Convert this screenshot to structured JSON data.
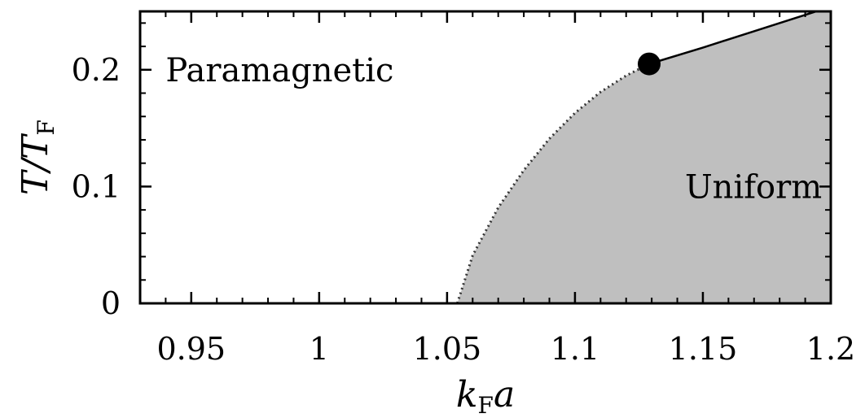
{
  "chart_data": {
    "type": "area",
    "xlabel": {
      "main": "k",
      "sub": "F",
      "tail": "a"
    },
    "ylabel": {
      "main": "T/T",
      "sub": "F"
    },
    "xlim": [
      0.93,
      1.2
    ],
    "ylim": [
      0,
      0.25
    ],
    "x_ticks": [
      0.95,
      1,
      1.05,
      1.1,
      1.15,
      1.2
    ],
    "x_tick_labels": [
      "0.95",
      "1",
      "1.05",
      "1.1",
      "1.15",
      "1.2"
    ],
    "y_ticks": [
      0,
      0.1,
      0.2
    ],
    "y_tick_labels": [
      "0",
      "0.1",
      "0.2"
    ],
    "grid": false,
    "regions": [
      {
        "label": "Paramagnetic",
        "x": 0.94,
        "y": 0.2
      },
      {
        "label": "Uniform",
        "x": 1.143,
        "y": 0.1
      }
    ],
    "fill_color": "#bfbfbf",
    "boundary_second_order": {
      "style": "dotted",
      "x": [
        1.054,
        1.06,
        1.07,
        1.08,
        1.09,
        1.1,
        1.11,
        1.12,
        1.129
      ],
      "y": [
        0.0,
        0.041,
        0.082,
        0.114,
        0.141,
        0.163,
        0.181,
        0.195,
        0.205
      ]
    },
    "boundary_first_order": {
      "style": "solid",
      "x": [
        1.129,
        1.15,
        1.17,
        1.19,
        1.2
      ],
      "y": [
        0.205,
        0.219,
        0.233,
        0.247,
        0.254
      ]
    },
    "tricritical_point": {
      "x": 1.129,
      "y": 0.205
    }
  }
}
